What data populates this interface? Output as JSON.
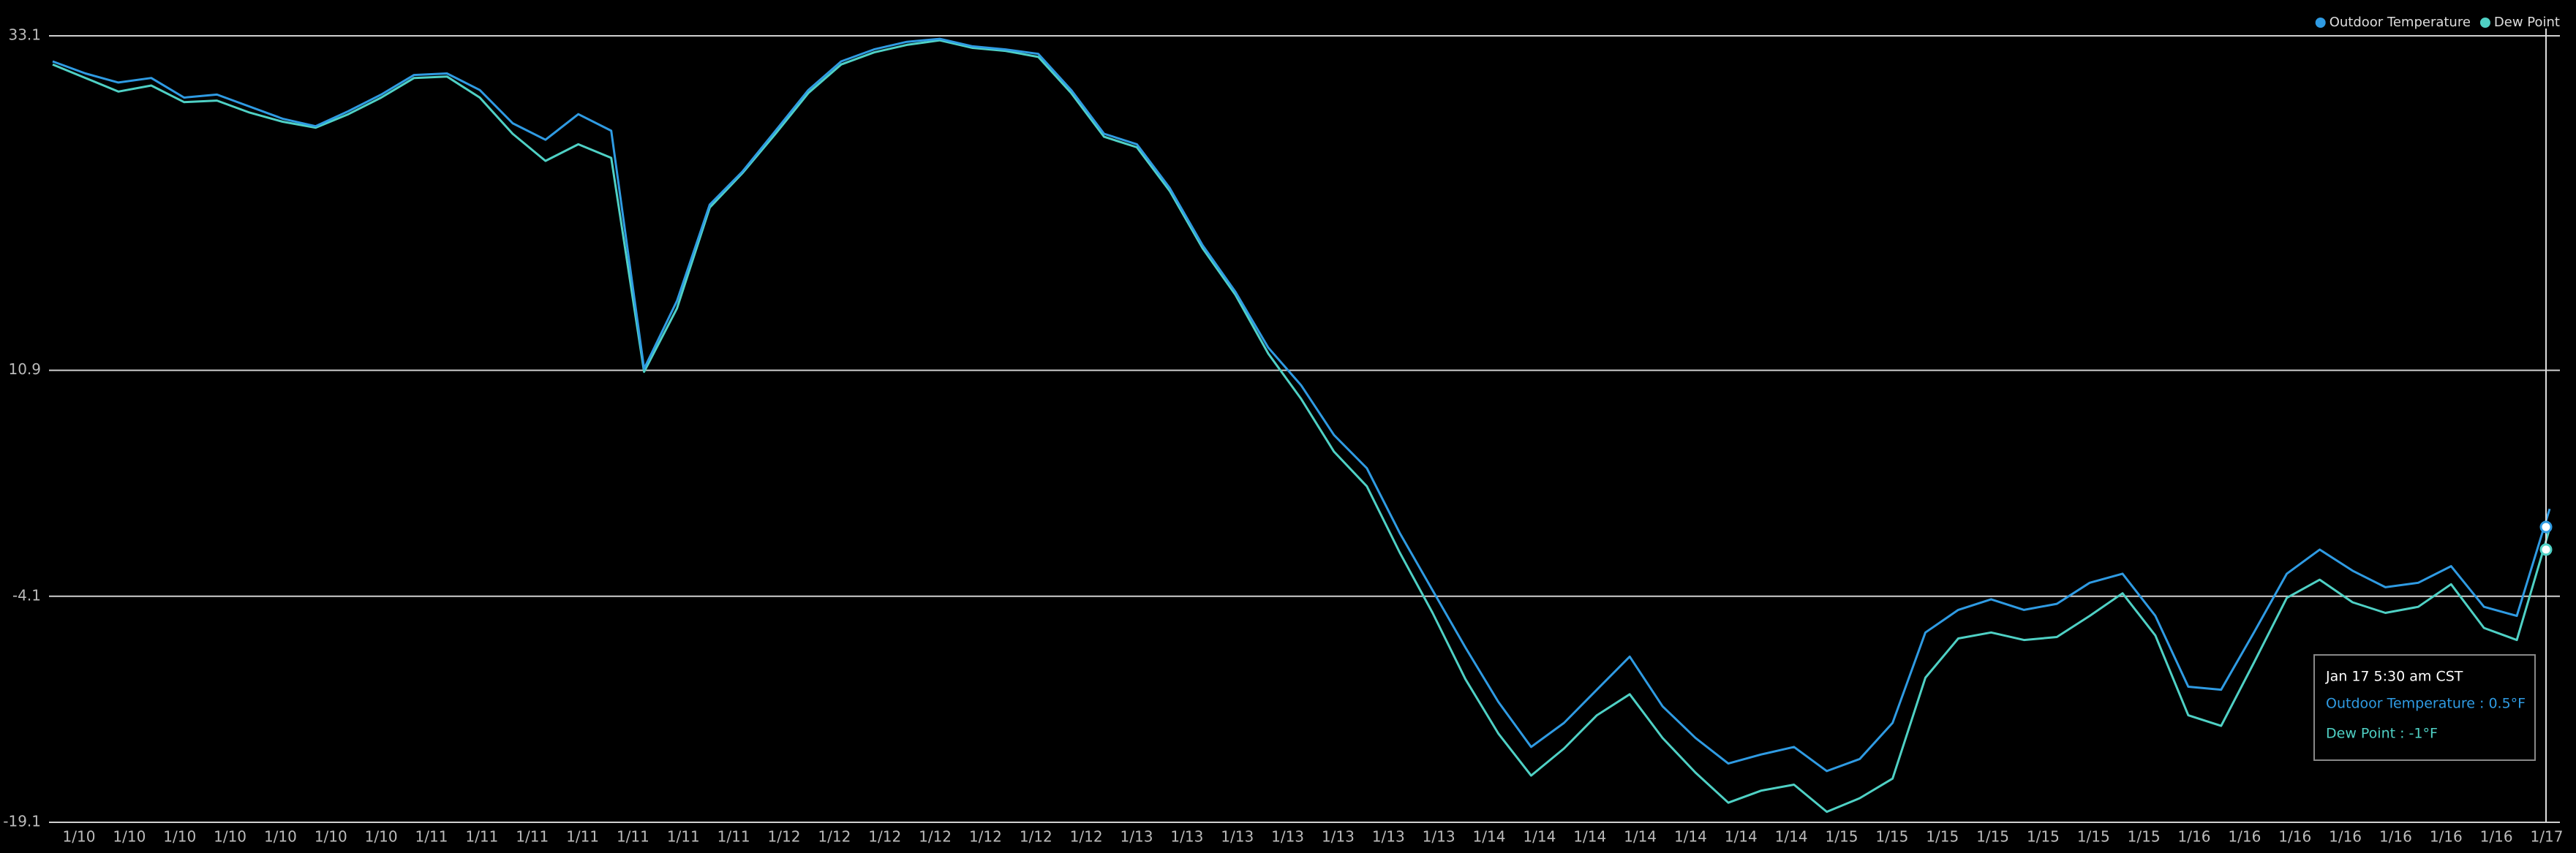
{
  "chart_data": {
    "type": "line",
    "xtick_labels": [
      "1/10",
      "1/10",
      "1/10",
      "1/10",
      "1/10",
      "1/10",
      "1/10",
      "1/11",
      "1/11",
      "1/11",
      "1/11",
      "1/11",
      "1/11",
      "1/11",
      "1/12",
      "1/12",
      "1/12",
      "1/12",
      "1/12",
      "1/12",
      "1/12",
      "1/13",
      "1/13",
      "1/13",
      "1/13",
      "1/13",
      "1/13",
      "1/13",
      "1/14",
      "1/14",
      "1/14",
      "1/14",
      "1/14",
      "1/14",
      "1/14",
      "1/15",
      "1/15",
      "1/15",
      "1/15",
      "1/15",
      "1/15",
      "1/15",
      "1/16",
      "1/16",
      "1/16",
      "1/16",
      "1/16",
      "1/16",
      "1/16",
      "1/17"
    ],
    "series": [
      {
        "name": "Outdoor Temperature",
        "color": "#2f9be3",
        "values": [
          31.4,
          30.6,
          30.0,
          30.3,
          29.0,
          29.2,
          28.4,
          27.6,
          27.1,
          28.1,
          29.2,
          30.5,
          30.6,
          29.5,
          27.3,
          26.2,
          27.9,
          26.8,
          11.0,
          15.5,
          21.9,
          24.1,
          26.8,
          29.5,
          31.4,
          32.2,
          32.7,
          32.9,
          32.4,
          32.2,
          31.9,
          29.5,
          26.6,
          25.9,
          23.0,
          19.2,
          16.1,
          12.4,
          9.9,
          6.6,
          4.4,
          0.1,
          -3.7,
          -7.5,
          -11.1,
          -14.1,
          -12.5,
          -10.3,
          -8.1,
          -11.4,
          -13.5,
          -15.2,
          -14.6,
          -14.1,
          -15.7,
          -14.9,
          -12.5,
          -6.5,
          -5.0,
          -4.3,
          -5.0,
          -4.6,
          -3.2,
          -2.6,
          -5.4,
          -10.1,
          -10.3,
          -6.5,
          -2.6,
          -1.0,
          -2.4,
          -3.5,
          -3.2,
          -2.1,
          -4.8,
          -5.4,
          1.7
        ]
      },
      {
        "name": "Dew Point",
        "color": "#4fd1c5",
        "values": [
          31.2,
          30.3,
          29.4,
          29.8,
          28.7,
          28.8,
          28.0,
          27.4,
          27.0,
          27.9,
          29.0,
          30.3,
          30.4,
          29.0,
          26.6,
          24.8,
          25.9,
          25.0,
          10.8,
          15.0,
          21.7,
          24.0,
          26.6,
          29.3,
          31.2,
          32.0,
          32.5,
          32.8,
          32.3,
          32.1,
          31.7,
          29.3,
          26.4,
          25.7,
          22.8,
          19.0,
          15.9,
          12.0,
          9.0,
          5.5,
          3.2,
          -1.2,
          -5.2,
          -9.6,
          -13.2,
          -16.0,
          -14.2,
          -12.0,
          -10.6,
          -13.5,
          -15.8,
          -17.8,
          -17.0,
          -16.6,
          -18.4,
          -17.5,
          -16.2,
          -9.5,
          -6.9,
          -6.5,
          -7.0,
          -6.8,
          -5.4,
          -3.9,
          -6.7,
          -12.0,
          -12.7,
          -8.5,
          -4.2,
          -3.0,
          -4.5,
          -5.2,
          -4.8,
          -3.3,
          -6.2,
          -7.0,
          0.4
        ]
      }
    ],
    "ylim": [
      -19.1,
      33.1
    ],
    "yticks": [
      -19.1,
      -4.1,
      10.9,
      33.1
    ],
    "grid": true,
    "legend": "top-right",
    "tooltip": {
      "title": "Jan 17 5:30 am CST",
      "values": [
        0.5,
        -1
      ],
      "value_labels": [
        "Outdoor Temperature : 0.5°F",
        "Dew Point : -1°F"
      ]
    }
  }
}
